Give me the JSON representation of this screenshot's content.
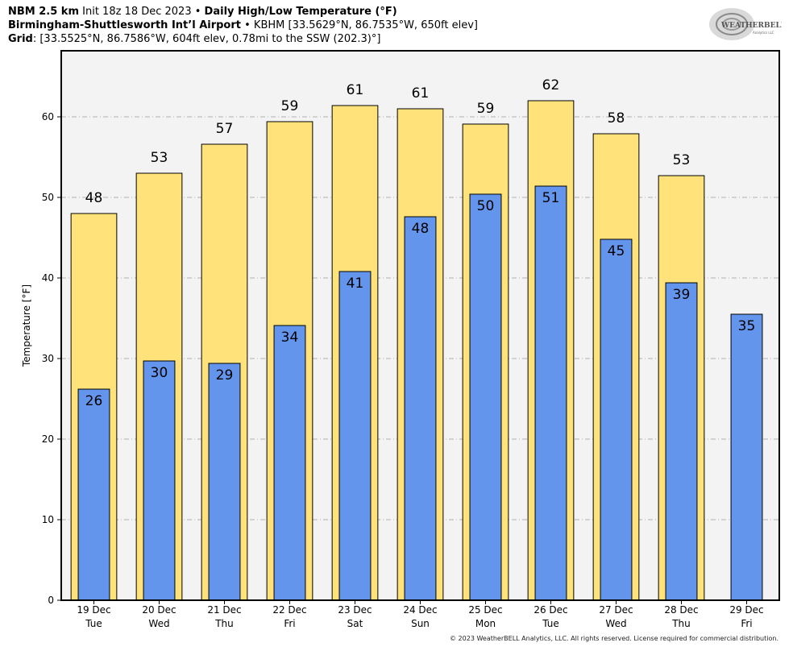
{
  "header": {
    "line1_bold_a": "NBM 2.5 km",
    "line1_normal": "Init 18z 18 Dec 2023 •",
    "line1_bold_b": "Daily High/Low Temperature (°F)",
    "line2_bold": "Birmingham-Shuttlesworth Int’l Airport",
    "line2_normal": "• KBHM [33.5629°N, 86.7535°W, 650ft elev]",
    "line3_bold": "Grid",
    "line3_normal": ": [33.5525°N, 86.7586°W, 604ft elev, 0.78mi to the SSW (202.3)°]"
  },
  "logo": {
    "text_main": "WEATHERBELL",
    "text_sub": "Analytics LLC"
  },
  "copyright": "© 2023 WeatherBELL Analytics, LLC. All rights reserved. License required for commercial distribution.",
  "colors": {
    "high": "#ffe37a",
    "low": "#6495ed",
    "plot_bg": "#f3f3f3",
    "grid": "#b0b0b0"
  },
  "chart_data": {
    "type": "bar",
    "ylabel": "Temperature [°F]",
    "ylim": [
      0,
      68.2
    ],
    "yticks": [
      0,
      10,
      20,
      30,
      40,
      50,
      60
    ],
    "grid": true,
    "categories": [
      "19 Dec",
      "20 Dec",
      "21 Dec",
      "22 Dec",
      "23 Dec",
      "24 Dec",
      "25 Dec",
      "26 Dec",
      "27 Dec",
      "28 Dec",
      "29 Dec"
    ],
    "weekdays": [
      "Tue",
      "Wed",
      "Thu",
      "Fri",
      "Sat",
      "Sun",
      "Mon",
      "Tue",
      "Wed",
      "Thu",
      "Fri"
    ],
    "series": [
      {
        "key": "high",
        "values": [
          48,
          53,
          56.6,
          59.4,
          61.4,
          61,
          59.1,
          62,
          57.9,
          52.7,
          null
        ],
        "labels": [
          "48",
          "53",
          "57",
          "59",
          "61",
          "61",
          "59",
          "62",
          "58",
          "53",
          ""
        ]
      },
      {
        "key": "low",
        "values": [
          26.2,
          29.7,
          29.4,
          34.1,
          40.8,
          47.6,
          50.4,
          51.4,
          44.8,
          39.4,
          35.5
        ],
        "labels": [
          "26",
          "30",
          "29",
          "34",
          "41",
          "48",
          "50",
          "51",
          "45",
          "39",
          "35"
        ]
      }
    ]
  }
}
